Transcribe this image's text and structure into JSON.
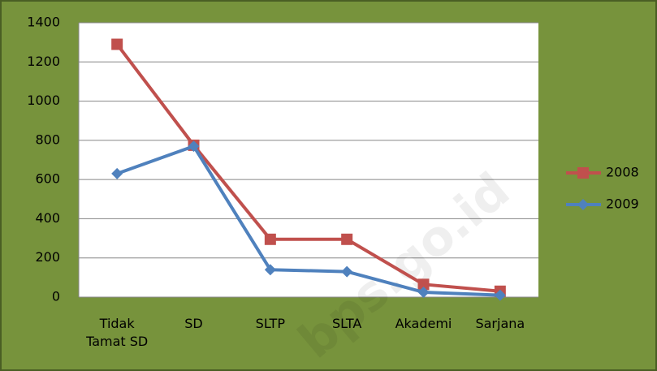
{
  "chart_data": {
    "type": "line",
    "categories": [
      "Tidak Tamat SD",
      "SD",
      "SLTP",
      "SLTA",
      "Akademi",
      "Sarjana"
    ],
    "series": [
      {
        "name": "2008",
        "color": "#c0504d",
        "marker": "square",
        "values": [
          1290,
          775,
          295,
          295,
          65,
          30
        ]
      },
      {
        "name": "2009",
        "color": "#4f81bd",
        "marker": "diamond",
        "values": [
          630,
          770,
          140,
          130,
          25,
          10
        ]
      }
    ],
    "ylim": [
      0,
      1400
    ],
    "yticks": [
      0,
      200,
      400,
      600,
      800,
      1000,
      1200,
      1400
    ],
    "grid": true,
    "legend": "right",
    "watermark": "bps.go.id"
  }
}
